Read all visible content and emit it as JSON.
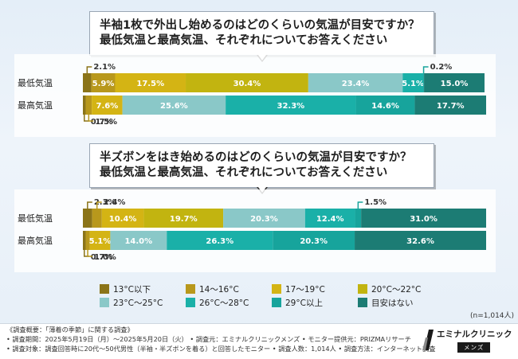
{
  "charts": [
    {
      "question": [
        "半袖1枚で外出し始めるのはどのくらいの気温が目安ですか？",
        "最低気温と最高気温、それぞれについてお答えください"
      ]
    },
    {
      "question": [
        "半ズボンをはき始めるのはどのくらいの気温が目安ですか？",
        "最低気温と最高気温、それぞれについてお答えください"
      ]
    }
  ],
  "chart_data": [
    {
      "type": "bar",
      "stacked": true,
      "orientation": "horizontal",
      "categories": [
        "最低気温",
        "最高気温"
      ],
      "series": [
        {
          "name": "13°C以下",
          "values": [
            2.1,
            0.7
          ]
        },
        {
          "name": "14～16°C",
          "values": [
            5.9,
            1.5
          ]
        },
        {
          "name": "17～19°C",
          "values": [
            17.5,
            7.6
          ]
        },
        {
          "name": "20°C～22°C",
          "values": [
            30.4,
            0
          ]
        },
        {
          "name": "23°C～25°C",
          "values": [
            23.4,
            25.6
          ]
        },
        {
          "name": "26°C～28°C",
          "values": [
            5.1,
            32.3
          ]
        },
        {
          "name": "29°C以上",
          "values": [
            0.2,
            14.6
          ]
        },
        {
          "name": "目安はない",
          "values": [
            15.0,
            17.7
          ]
        }
      ],
      "labels": [
        [
          "2.1",
          "5.9",
          "17.5",
          "30.4",
          "23.4",
          "5.1",
          "0.2",
          "15.0"
        ],
        [
          "0.7",
          "1.5",
          "7.6",
          "",
          "25.6",
          "32.3",
          "14.6",
          "17.7"
        ]
      ]
    },
    {
      "type": "bar",
      "stacked": true,
      "orientation": "horizontal",
      "categories": [
        "最低気温",
        "最高気温"
      ],
      "series": [
        {
          "name": "13°C以下",
          "values": [
            2.3,
            0.7
          ]
        },
        {
          "name": "14～16°C",
          "values": [
            2.4,
            1.0
          ]
        },
        {
          "name": "17～19°C",
          "values": [
            10.4,
            5.1
          ]
        },
        {
          "name": "20°C～22°C",
          "values": [
            19.7,
            0
          ]
        },
        {
          "name": "23°C～25°C",
          "values": [
            20.3,
            14.0
          ]
        },
        {
          "name": "26°C～28°C",
          "values": [
            12.4,
            26.3
          ]
        },
        {
          "name": "29°C以上",
          "values": [
            1.5,
            20.3
          ]
        },
        {
          "name": "目安はない",
          "values": [
            31.0,
            32.6
          ]
        }
      ],
      "labels": [
        [
          "2.3",
          "2.4",
          "10.4",
          "19.7",
          "20.3",
          "12.4",
          "1.5",
          "31.0"
        ],
        [
          "0.7",
          "1.0",
          "5.1",
          "",
          "14.0",
          "26.3",
          "20.3",
          "32.6"
        ]
      ]
    }
  ],
  "colors": [
    "#8b7418",
    "#b8981c",
    "#d4b414",
    "#c2b410",
    "#8ac8c8",
    "#1ab0a8",
    "#17a49c",
    "#1c7c74"
  ],
  "legend": [
    "13°C以下",
    "14～16°C",
    "17～19°C",
    "20°C～22°C",
    "23°C～25°C",
    "26°C～28°C",
    "29°C以上",
    "目安はない"
  ],
  "percent_sign": "%",
  "n_label": "(n=1,014人)",
  "footer": {
    "lines": [
      "《調査概要：「薄着の季節」に関する調査》",
      "• 調査期間：2025年5月19日（月）～2025年5月20日（火）  • 調査元：エミナルクリニックメンズ  • モニター提供元：PRIZMAリサーチ",
      "• 調査対象：調査回答時に20代～50代男性（半袖・半ズボンを着る）と回答したモニター  • 調査人数：1,014人  • 調査方法：インターネット調査"
    ]
  },
  "logo": {
    "name": "エミナルクリニック",
    "sub": "メンズ"
  }
}
